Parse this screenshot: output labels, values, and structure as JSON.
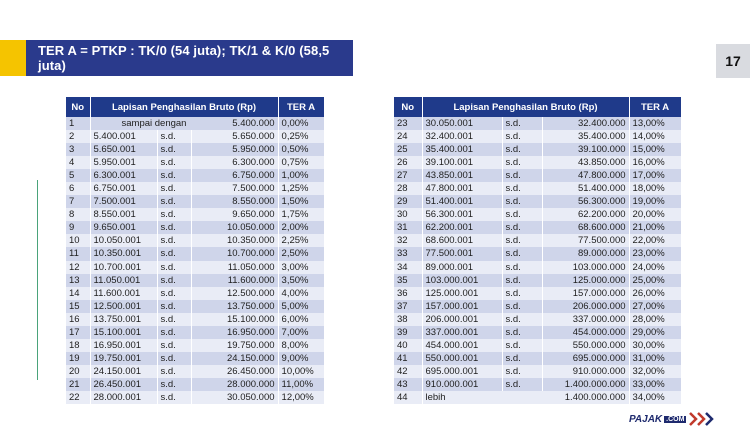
{
  "title": "TER A = PTKP : TK/0 (54 juta); TK/1 & K/0 (58,5 juta)",
  "page_number": "17",
  "colors": {
    "header": "#1f3a8a",
    "accent": "#f5c400",
    "row_odd": "#cfd5ea",
    "row_even": "#e9ecf6"
  },
  "table_left": {
    "headers": [
      "No",
      "Lapisan Penghasilan Bruto (Rp)",
      "TER A"
    ],
    "rows": [
      {
        "no": "1",
        "from": "sampai dengan",
        "sd": "",
        "to": "5.400.000",
        "rate": "0,00%"
      },
      {
        "no": "2",
        "from": "5.400.001",
        "sd": "s.d.",
        "to": "5.650.000",
        "rate": "0,25%"
      },
      {
        "no": "3",
        "from": "5.650.001",
        "sd": "s.d.",
        "to": "5.950.000",
        "rate": "0,50%"
      },
      {
        "no": "4",
        "from": "5.950.001",
        "sd": "s.d.",
        "to": "6.300.000",
        "rate": "0,75%"
      },
      {
        "no": "5",
        "from": "6.300.001",
        "sd": "s.d.",
        "to": "6.750.000",
        "rate": "1,00%"
      },
      {
        "no": "6",
        "from": "6.750.001",
        "sd": "s.d.",
        "to": "7.500.000",
        "rate": "1,25%"
      },
      {
        "no": "7",
        "from": "7.500.001",
        "sd": "s.d.",
        "to": "8.550.000",
        "rate": "1,50%"
      },
      {
        "no": "8",
        "from": "8.550.001",
        "sd": "s.d.",
        "to": "9.650.000",
        "rate": "1,75%"
      },
      {
        "no": "9",
        "from": "9.650.001",
        "sd": "s.d.",
        "to": "10.050.000",
        "rate": "2,00%"
      },
      {
        "no": "10",
        "from": "10.050.001",
        "sd": "s.d.",
        "to": "10.350.000",
        "rate": "2,25%"
      },
      {
        "no": "11",
        "from": "10.350.001",
        "sd": "s.d.",
        "to": "10.700.000",
        "rate": "2,50%"
      },
      {
        "no": "12",
        "from": "10.700.001",
        "sd": "s.d.",
        "to": "11.050.000",
        "rate": "3,00%"
      },
      {
        "no": "13",
        "from": "11.050.001",
        "sd": "s.d.",
        "to": "11.600.000",
        "rate": "3,50%"
      },
      {
        "no": "14",
        "from": "11.600.001",
        "sd": "s.d.",
        "to": "12.500.000",
        "rate": "4,00%"
      },
      {
        "no": "15",
        "from": "12.500.001",
        "sd": "s.d.",
        "to": "13.750.000",
        "rate": "5,00%"
      },
      {
        "no": "16",
        "from": "13.750.001",
        "sd": "s.d.",
        "to": "15.100.000",
        "rate": "6,00%"
      },
      {
        "no": "17",
        "from": "15.100.001",
        "sd": "s.d.",
        "to": "16.950.000",
        "rate": "7,00%"
      },
      {
        "no": "18",
        "from": "16.950.001",
        "sd": "s.d.",
        "to": "19.750.000",
        "rate": "8,00%"
      },
      {
        "no": "19",
        "from": "19.750.001",
        "sd": "s.d.",
        "to": "24.150.000",
        "rate": "9,00%"
      },
      {
        "no": "20",
        "from": "24.150.001",
        "sd": "s.d.",
        "to": "26.450.000",
        "rate": "10,00%"
      },
      {
        "no": "21",
        "from": "26.450.001",
        "sd": "s.d.",
        "to": "28.000.000",
        "rate": "11,00%"
      },
      {
        "no": "22",
        "from": "28.000.001",
        "sd": "s.d.",
        "to": "30.050.000",
        "rate": "12,00%"
      }
    ]
  },
  "table_right": {
    "headers": [
      "No",
      "Lapisan Penghasilan Bruto (Rp)",
      "TER A"
    ],
    "rows": [
      {
        "no": "23",
        "from": "30.050.001",
        "sd": "s.d.",
        "to": "32.400.000",
        "rate": "13,00%"
      },
      {
        "no": "24",
        "from": "32.400.001",
        "sd": "s.d.",
        "to": "35.400.000",
        "rate": "14,00%"
      },
      {
        "no": "25",
        "from": "35.400.001",
        "sd": "s.d.",
        "to": "39.100.000",
        "rate": "15,00%"
      },
      {
        "no": "26",
        "from": "39.100.001",
        "sd": "s.d.",
        "to": "43.850.000",
        "rate": "16,00%"
      },
      {
        "no": "27",
        "from": "43.850.001",
        "sd": "s.d.",
        "to": "47.800.000",
        "rate": "17,00%"
      },
      {
        "no": "28",
        "from": "47.800.001",
        "sd": "s.d.",
        "to": "51.400.000",
        "rate": "18,00%"
      },
      {
        "no": "29",
        "from": "51.400.001",
        "sd": "s.d.",
        "to": "56.300.000",
        "rate": "19,00%"
      },
      {
        "no": "30",
        "from": "56.300.001",
        "sd": "s.d.",
        "to": "62.200.000",
        "rate": "20,00%"
      },
      {
        "no": "31",
        "from": "62.200.001",
        "sd": "s.d.",
        "to": "68.600.000",
        "rate": "21,00%"
      },
      {
        "no": "32",
        "from": "68.600.001",
        "sd": "s.d.",
        "to": "77.500.000",
        "rate": "22,00%"
      },
      {
        "no": "33",
        "from": "77.500.001",
        "sd": "s.d.",
        "to": "89.000.000",
        "rate": "23,00%"
      },
      {
        "no": "34",
        "from": "89.000.001",
        "sd": "s.d.",
        "to": "103.000.000",
        "rate": "24,00%"
      },
      {
        "no": "35",
        "from": "103.000.001",
        "sd": "s.d.",
        "to": "125.000.000",
        "rate": "25,00%"
      },
      {
        "no": "36",
        "from": "125.000.001",
        "sd": "s.d.",
        "to": "157.000.000",
        "rate": "26,00%"
      },
      {
        "no": "37",
        "from": "157.000.001",
        "sd": "s.d.",
        "to": "206.000.000",
        "rate": "27,00%"
      },
      {
        "no": "38",
        "from": "206.000.001",
        "sd": "s.d.",
        "to": "337.000.000",
        "rate": "28,00%"
      },
      {
        "no": "39",
        "from": "337.000.001",
        "sd": "s.d.",
        "to": "454.000.000",
        "rate": "29,00%"
      },
      {
        "no": "40",
        "from": "454.000.001",
        "sd": "s.d.",
        "to": "550.000.000",
        "rate": "30,00%"
      },
      {
        "no": "41",
        "from": "550.000.001",
        "sd": "s.d.",
        "to": "695.000.000",
        "rate": "31,00%"
      },
      {
        "no": "42",
        "from": "695.000.001",
        "sd": "s.d.",
        "to": "910.000.000",
        "rate": "32,00%"
      },
      {
        "no": "43",
        "from": "910.000.001",
        "sd": "s.d.",
        "to": "1.400.000.000",
        "rate": "33,00%"
      },
      {
        "no": "44",
        "from": "lebih",
        "sd": "",
        "to": "1.400.000.000",
        "rate": "34,00%"
      }
    ]
  },
  "logo": {
    "name": "PAJAK",
    "suffix": ".COM",
    "mark_icon": "chevron-arrows-icon"
  }
}
